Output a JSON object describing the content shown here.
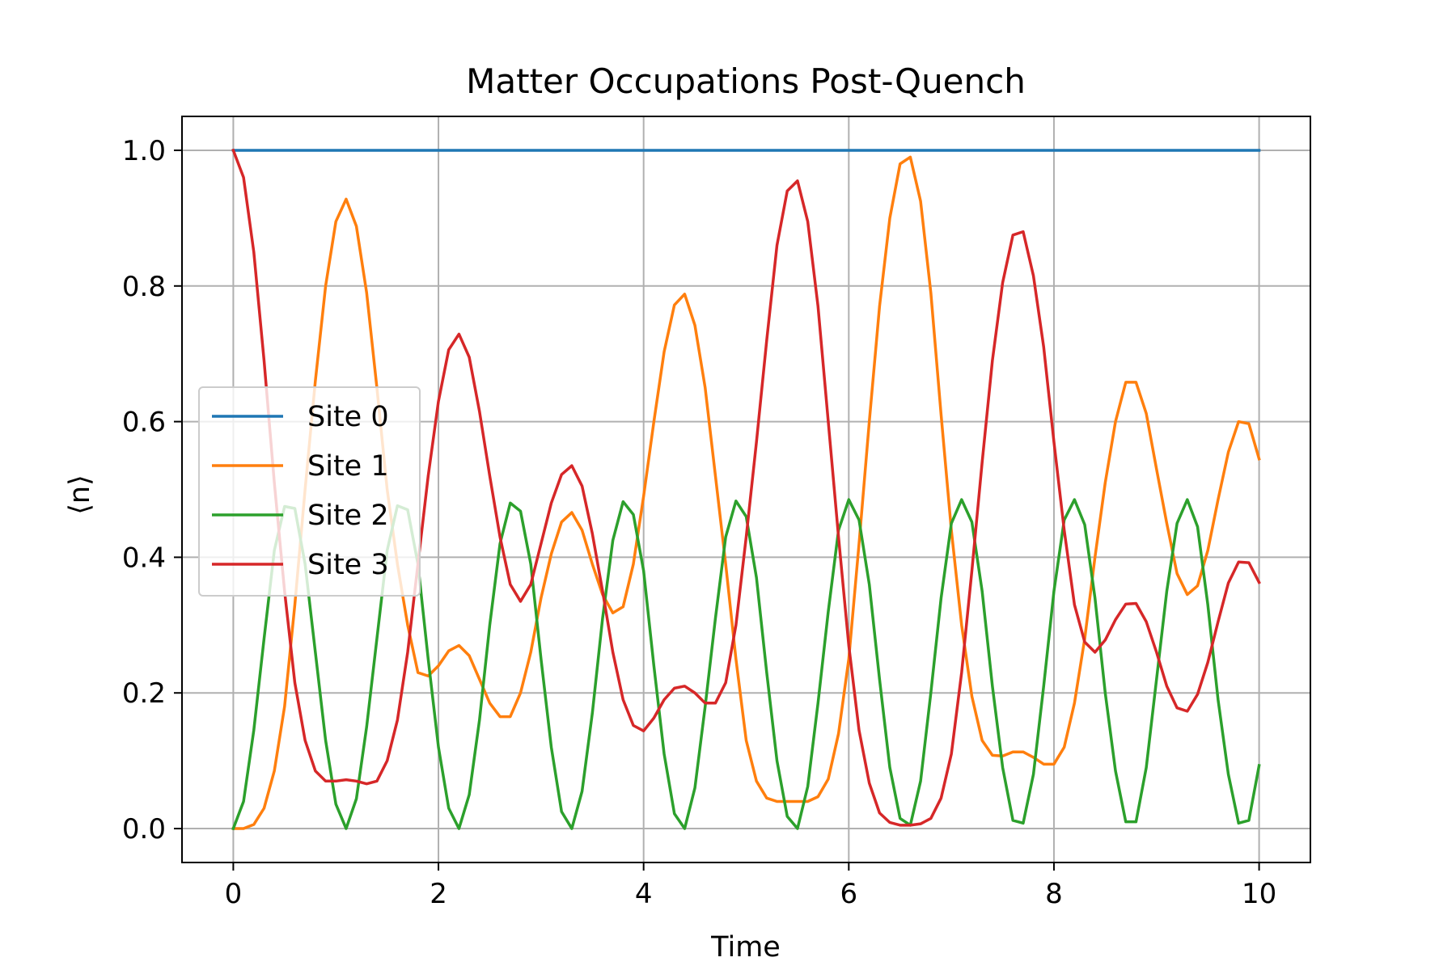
{
  "chart_data": {
    "type": "line",
    "title": "Matter Occupations Post-Quench",
    "xlabel": "Time",
    "ylabel": "⟨n⟩",
    "xlim": [
      -0.5,
      10.5
    ],
    "ylim": [
      -0.05,
      1.05
    ],
    "xticks": [
      0,
      2,
      4,
      6,
      8,
      10
    ],
    "xtick_labels": [
      "0",
      "2",
      "4",
      "6",
      "8",
      "10"
    ],
    "yticks": [
      0.0,
      0.2,
      0.4,
      0.6,
      0.8,
      1.0
    ],
    "ytick_labels": [
      "0.0",
      "0.2",
      "0.4",
      "0.6",
      "0.8",
      "1.0"
    ],
    "grid": true,
    "legend_position": "center-left",
    "x": [
      0.0,
      0.1,
      0.2,
      0.3,
      0.4,
      0.5,
      0.6,
      0.7,
      0.8,
      0.9,
      1.0,
      1.1,
      1.2,
      1.3,
      1.4,
      1.5,
      1.6,
      1.7,
      1.8,
      1.9,
      2.0,
      2.1,
      2.2,
      2.3,
      2.4,
      2.5,
      2.6,
      2.7,
      2.8,
      2.9,
      3.0,
      3.1,
      3.2,
      3.3,
      3.4,
      3.5,
      3.6,
      3.7,
      3.8,
      3.9,
      4.0,
      4.1,
      4.2,
      4.3,
      4.4,
      4.5,
      4.6,
      4.7,
      4.8,
      4.9,
      5.0,
      5.1,
      5.2,
      5.3,
      5.4,
      5.5,
      5.6,
      5.7,
      5.8,
      5.9,
      6.0,
      6.1,
      6.2,
      6.3,
      6.4,
      6.5,
      6.6,
      6.7,
      6.8,
      6.9,
      7.0,
      7.1,
      7.2,
      7.3,
      7.4,
      7.5,
      7.6,
      7.7,
      7.8,
      7.9,
      8.0,
      8.1,
      8.2,
      8.3,
      8.4,
      8.5,
      8.6,
      8.7,
      8.8,
      8.9,
      9.0,
      9.1,
      9.2,
      9.3,
      9.4,
      9.5,
      9.6,
      9.7,
      9.8,
      9.9,
      10.0
    ],
    "series": [
      {
        "name": "Site 0",
        "color": "#1f77b4",
        "values": [
          1.0,
          1.0,
          1.0,
          1.0,
          1.0,
          1.0,
          1.0,
          1.0,
          1.0,
          1.0,
          1.0,
          1.0,
          1.0,
          1.0,
          1.0,
          1.0,
          1.0,
          1.0,
          1.0,
          1.0,
          1.0,
          1.0,
          1.0,
          1.0,
          1.0,
          1.0,
          1.0,
          1.0,
          1.0,
          1.0,
          1.0,
          1.0,
          1.0,
          1.0,
          1.0,
          1.0,
          1.0,
          1.0,
          1.0,
          1.0,
          1.0,
          1.0,
          1.0,
          1.0,
          1.0,
          1.0,
          1.0,
          1.0,
          1.0,
          1.0,
          1.0,
          1.0,
          1.0,
          1.0,
          1.0,
          1.0,
          1.0,
          1.0,
          1.0,
          1.0,
          1.0,
          1.0,
          1.0,
          1.0,
          1.0,
          1.0,
          1.0,
          1.0,
          1.0,
          1.0,
          1.0,
          1.0,
          1.0,
          1.0,
          1.0,
          1.0,
          1.0,
          1.0,
          1.0,
          1.0,
          1.0,
          1.0,
          1.0,
          1.0,
          1.0,
          1.0,
          1.0,
          1.0,
          1.0,
          1.0,
          1.0,
          1.0,
          1.0,
          1.0,
          1.0,
          1.0,
          1.0,
          1.0,
          1.0,
          1.0,
          1.0
        ]
      },
      {
        "name": "Site 1",
        "color": "#ff7f0e",
        "values": [
          0.0,
          0.0,
          0.006,
          0.03,
          0.085,
          0.18,
          0.33,
          0.5,
          0.66,
          0.8,
          0.895,
          0.928,
          0.888,
          0.79,
          0.65,
          0.5,
          0.39,
          0.3,
          0.23,
          0.225,
          0.24,
          0.262,
          0.27,
          0.255,
          0.22,
          0.185,
          0.165,
          0.165,
          0.2,
          0.26,
          0.34,
          0.405,
          0.452,
          0.466,
          0.44,
          0.39,
          0.345,
          0.318,
          0.327,
          0.39,
          0.49,
          0.6,
          0.703,
          0.772,
          0.788,
          0.742,
          0.65,
          0.52,
          0.39,
          0.25,
          0.13,
          0.07,
          0.045,
          0.04,
          0.04,
          0.04,
          0.04,
          0.047,
          0.073,
          0.14,
          0.25,
          0.42,
          0.6,
          0.77,
          0.9,
          0.98,
          0.99,
          0.925,
          0.79,
          0.61,
          0.44,
          0.3,
          0.195,
          0.13,
          0.108,
          0.107,
          0.113,
          0.113,
          0.105,
          0.095,
          0.095,
          0.12,
          0.185,
          0.28,
          0.4,
          0.51,
          0.6,
          0.658,
          0.658,
          0.612,
          0.53,
          0.45,
          0.376,
          0.345,
          0.358,
          0.41,
          0.485,
          0.555,
          0.6,
          0.597,
          0.545
        ]
      },
      {
        "name": "Site 2",
        "color": "#2ca02c",
        "values": [
          0.0,
          0.04,
          0.145,
          0.28,
          0.41,
          0.475,
          0.472,
          0.39,
          0.26,
          0.13,
          0.036,
          0.0,
          0.044,
          0.15,
          0.28,
          0.41,
          0.476,
          0.47,
          0.39,
          0.25,
          0.12,
          0.03,
          0.0,
          0.05,
          0.16,
          0.3,
          0.42,
          0.48,
          0.468,
          0.39,
          0.25,
          0.12,
          0.025,
          0.0,
          0.055,
          0.17,
          0.31,
          0.425,
          0.482,
          0.463,
          0.38,
          0.24,
          0.11,
          0.022,
          0.0,
          0.06,
          0.18,
          0.31,
          0.43,
          0.483,
          0.46,
          0.37,
          0.23,
          0.1,
          0.018,
          0.0,
          0.062,
          0.185,
          0.32,
          0.44,
          0.485,
          0.455,
          0.36,
          0.22,
          0.09,
          0.015,
          0.005,
          0.07,
          0.2,
          0.34,
          0.45,
          0.485,
          0.452,
          0.35,
          0.21,
          0.09,
          0.012,
          0.008,
          0.08,
          0.21,
          0.35,
          0.455,
          0.485,
          0.448,
          0.34,
          0.2,
          0.085,
          0.01,
          0.01,
          0.09,
          0.22,
          0.35,
          0.45,
          0.485,
          0.445,
          0.33,
          0.19,
          0.08,
          0.008,
          0.012,
          0.093
        ]
      },
      {
        "name": "Site 3",
        "color": "#d62728",
        "values": [
          1.0,
          0.96,
          0.85,
          0.69,
          0.51,
          0.35,
          0.215,
          0.13,
          0.085,
          0.07,
          0.07,
          0.072,
          0.07,
          0.066,
          0.07,
          0.1,
          0.16,
          0.26,
          0.39,
          0.52,
          0.63,
          0.706,
          0.729,
          0.695,
          0.615,
          0.52,
          0.43,
          0.36,
          0.335,
          0.36,
          0.42,
          0.48,
          0.522,
          0.535,
          0.505,
          0.435,
          0.35,
          0.26,
          0.19,
          0.152,
          0.144,
          0.163,
          0.19,
          0.207,
          0.21,
          0.2,
          0.185,
          0.185,
          0.215,
          0.3,
          0.43,
          0.57,
          0.72,
          0.86,
          0.94,
          0.955,
          0.895,
          0.77,
          0.6,
          0.43,
          0.27,
          0.145,
          0.067,
          0.023,
          0.009,
          0.005,
          0.005,
          0.007,
          0.015,
          0.045,
          0.11,
          0.23,
          0.38,
          0.54,
          0.69,
          0.805,
          0.875,
          0.88,
          0.815,
          0.71,
          0.57,
          0.44,
          0.33,
          0.275,
          0.26,
          0.278,
          0.308,
          0.331,
          0.332,
          0.305,
          0.26,
          0.21,
          0.178,
          0.173,
          0.198,
          0.245,
          0.305,
          0.362,
          0.393,
          0.392,
          0.363
        ]
      }
    ]
  }
}
